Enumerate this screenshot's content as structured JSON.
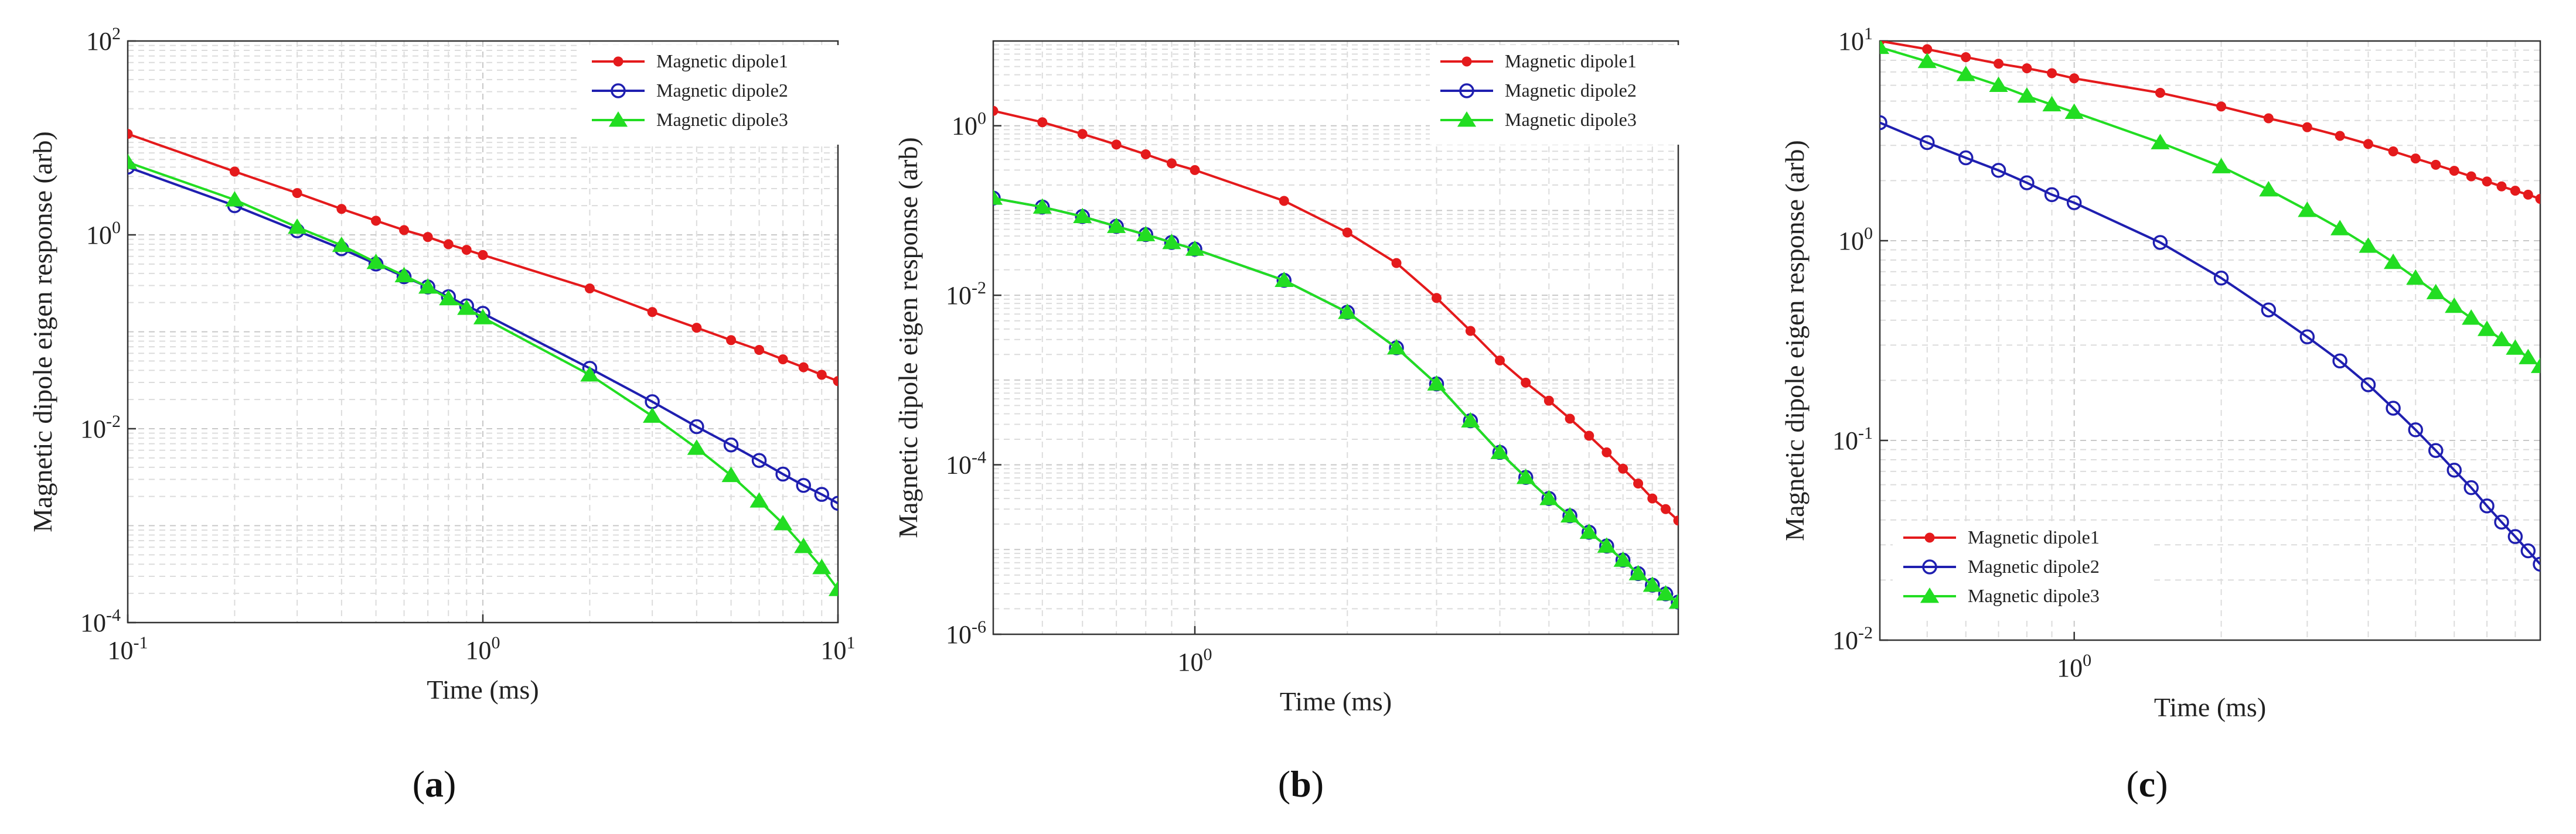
{
  "chart_data": [
    {
      "type": "line",
      "panel_label": "a",
      "xscale": "log",
      "yscale": "log",
      "xlabel": "Time (ms)",
      "ylabel": "Magnetic dipole eigen response (arb)",
      "xlim": [
        0.1,
        10
      ],
      "ylim": [
        0.0001,
        100
      ],
      "xticks": [
        {
          "v": 0.1,
          "b": "10",
          "e": "-1"
        },
        {
          "v": 1,
          "b": "10",
          "e": "0"
        },
        {
          "v": 10,
          "b": "10",
          "e": "1"
        }
      ],
      "yticks": [
        {
          "v": 0.0001,
          "b": "10",
          "e": "-4"
        },
        {
          "v": 0.01,
          "b": "10",
          "e": "-2"
        },
        {
          "v": 1,
          "b": "10",
          "e": "0"
        },
        {
          "v": 100,
          "b": "10",
          "e": "2"
        }
      ],
      "grid": true,
      "legend_position": "top-right",
      "x": [
        0.1,
        0.2,
        0.3,
        0.4,
        0.5,
        0.6,
        0.7,
        0.8,
        0.9,
        1,
        2,
        3,
        4,
        5,
        6,
        7,
        8,
        9,
        10
      ],
      "series": [
        {
          "name": "Magnetic dipole1",
          "color": "#e41a1c",
          "marker": "dot",
          "values": [
            11,
            4.5,
            2.7,
            1.85,
            1.4,
            1.12,
            0.95,
            0.8,
            0.7,
            0.62,
            0.28,
            0.16,
            0.11,
            0.082,
            0.065,
            0.052,
            0.043,
            0.036,
            0.031
          ]
        },
        {
          "name": "Magnetic dipole2",
          "color": "#1f1fb0",
          "marker": "circle",
          "values": [
            5.0,
            2.0,
            1.1,
            0.72,
            0.5,
            0.37,
            0.29,
            0.23,
            0.185,
            0.155,
            0.042,
            0.019,
            0.0105,
            0.0068,
            0.0047,
            0.0034,
            0.0026,
            0.0021,
            0.0017
          ]
        },
        {
          "name": "Magnetic dipole3",
          "color": "#22dd22",
          "marker": "triangle",
          "values": [
            5.6,
            2.3,
            1.2,
            0.78,
            0.52,
            0.38,
            0.29,
            0.22,
            0.175,
            0.14,
            0.036,
            0.0135,
            0.0063,
            0.0033,
            0.0018,
            0.00105,
            0.00061,
            0.00037,
            0.00022
          ]
        }
      ]
    },
    {
      "type": "line",
      "panel_label": "b",
      "xscale": "log",
      "yscale": "log",
      "xlabel": "Time (ms)",
      "ylabel": "Magnetic dipole eigen response (arb)",
      "xlim": [
        0.4,
        9
      ],
      "ylim": [
        1e-06,
        10
      ],
      "xticks": [
        {
          "v": 1,
          "b": "10",
          "e": "0"
        }
      ],
      "yticks": [
        {
          "v": 1e-06,
          "b": "10",
          "e": "-6"
        },
        {
          "v": 0.0001,
          "b": "10",
          "e": "-4"
        },
        {
          "v": 0.01,
          "b": "10",
          "e": "-2"
        },
        {
          "v": 1,
          "b": "10",
          "e": "0"
        }
      ],
      "grid": true,
      "legend_position": "top-right",
      "x": [
        0.4,
        0.5,
        0.6,
        0.7,
        0.8,
        0.9,
        1,
        1.5,
        2,
        2.5,
        3,
        3.5,
        4,
        4.5,
        5,
        5.5,
        6,
        6.5,
        7,
        7.5,
        8,
        8.5,
        9
      ],
      "series": [
        {
          "name": "Magnetic dipole1",
          "color": "#e41a1c",
          "marker": "dot",
          "values": [
            1.5,
            1.1,
            0.8,
            0.6,
            0.46,
            0.36,
            0.3,
            0.13,
            0.055,
            0.024,
            0.0093,
            0.0038,
            0.0017,
            0.00093,
            0.00057,
            0.00035,
            0.00022,
            0.00014,
            9e-05,
            6e-05,
            4e-05,
            3e-05,
            2.2e-05
          ]
        },
        {
          "name": "Magnetic dipole2",
          "color": "#1f1fb0",
          "marker": "circle",
          "values": [
            0.14,
            0.11,
            0.085,
            0.065,
            0.052,
            0.042,
            0.035,
            0.015,
            0.0063,
            0.0024,
            0.0009,
            0.00033,
            0.00014,
            7.1e-05,
            4e-05,
            2.5e-05,
            1.6e-05,
            1.1e-05,
            7.5e-06,
            5.2e-06,
            3.8e-06,
            3e-06,
            2.4e-06
          ]
        },
        {
          "name": "Magnetic dipole3",
          "color": "#22dd22",
          "marker": "triangle",
          "values": [
            0.14,
            0.11,
            0.085,
            0.065,
            0.052,
            0.042,
            0.035,
            0.015,
            0.0063,
            0.0024,
            0.0009,
            0.00033,
            0.00014,
            7.1e-05,
            4e-05,
            2.5e-05,
            1.6e-05,
            1.1e-05,
            7.5e-06,
            5.2e-06,
            3.8e-06,
            3e-06,
            2.4e-06
          ]
        }
      ]
    },
    {
      "type": "line",
      "panel_label": "c",
      "xscale": "log",
      "yscale": "log",
      "xlabel": "Time (ms)",
      "ylabel": "Magnetic dipole eigen response (arb)",
      "xlim": [
        0.4,
        9
      ],
      "ylim": [
        0.01,
        10
      ],
      "xticks": [
        {
          "v": 1,
          "b": "10",
          "e": "0"
        }
      ],
      "yticks": [
        {
          "v": 0.01,
          "b": "10",
          "e": "-2"
        },
        {
          "v": 0.1,
          "b": "10",
          "e": "-1"
        },
        {
          "v": 1,
          "b": "10",
          "e": "0"
        },
        {
          "v": 10,
          "b": "10",
          "e": "1"
        }
      ],
      "grid": true,
      "legend_position": "bottom-left",
      "x": [
        0.4,
        0.5,
        0.6,
        0.7,
        0.8,
        0.9,
        1,
        1.5,
        2,
        2.5,
        3,
        3.5,
        4,
        4.5,
        5,
        5.5,
        6,
        6.5,
        7,
        7.5,
        8,
        8.5,
        9
      ],
      "series": [
        {
          "name": "Magnetic dipole1",
          "color": "#e41a1c",
          "marker": "dot",
          "values": [
            10.0,
            9.1,
            8.3,
            7.7,
            7.3,
            6.9,
            6.5,
            5.5,
            4.7,
            4.1,
            3.7,
            3.35,
            3.05,
            2.8,
            2.58,
            2.4,
            2.24,
            2.1,
            1.98,
            1.87,
            1.78,
            1.7,
            1.62
          ]
        },
        {
          "name": "Magnetic dipole2",
          "color": "#1f1fb0",
          "marker": "circle",
          "values": [
            3.9,
            3.1,
            2.6,
            2.25,
            1.95,
            1.7,
            1.55,
            0.98,
            0.65,
            0.45,
            0.33,
            0.25,
            0.19,
            0.145,
            0.113,
            0.089,
            0.071,
            0.058,
            0.047,
            0.039,
            0.033,
            0.028,
            0.024
          ]
        },
        {
          "name": "Magnetic dipole3",
          "color": "#22dd22",
          "marker": "triangle",
          "values": [
            9.3,
            7.9,
            6.8,
            6.0,
            5.3,
            4.8,
            4.4,
            3.1,
            2.35,
            1.8,
            1.42,
            1.15,
            0.94,
            0.78,
            0.65,
            0.55,
            0.47,
            0.41,
            0.36,
            0.32,
            0.29,
            0.26,
            0.235
          ]
        }
      ]
    }
  ]
}
